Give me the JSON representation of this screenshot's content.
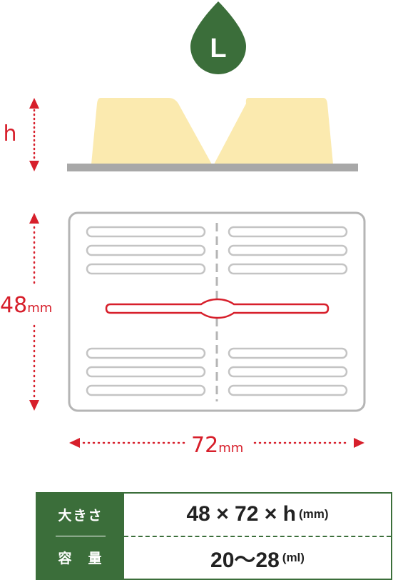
{
  "size_badge": {
    "label": "L",
    "color": "#3b6e3a"
  },
  "side_view": {
    "height_label": "h",
    "fill_color": "#fbeaaf",
    "base_color": "#a8a8a8"
  },
  "top_view": {
    "width_label": "72",
    "height_label": "48",
    "unit": "mm",
    "accent_color": "#d71f2b"
  },
  "spec_table": {
    "rows": [
      {
        "header": "大きさ",
        "value": "48 × 72 × h",
        "unit": "(mm)"
      },
      {
        "header": "容　量",
        "value": "20〜28",
        "unit": "(ml)"
      }
    ],
    "header_color": "#3b6e3a"
  }
}
